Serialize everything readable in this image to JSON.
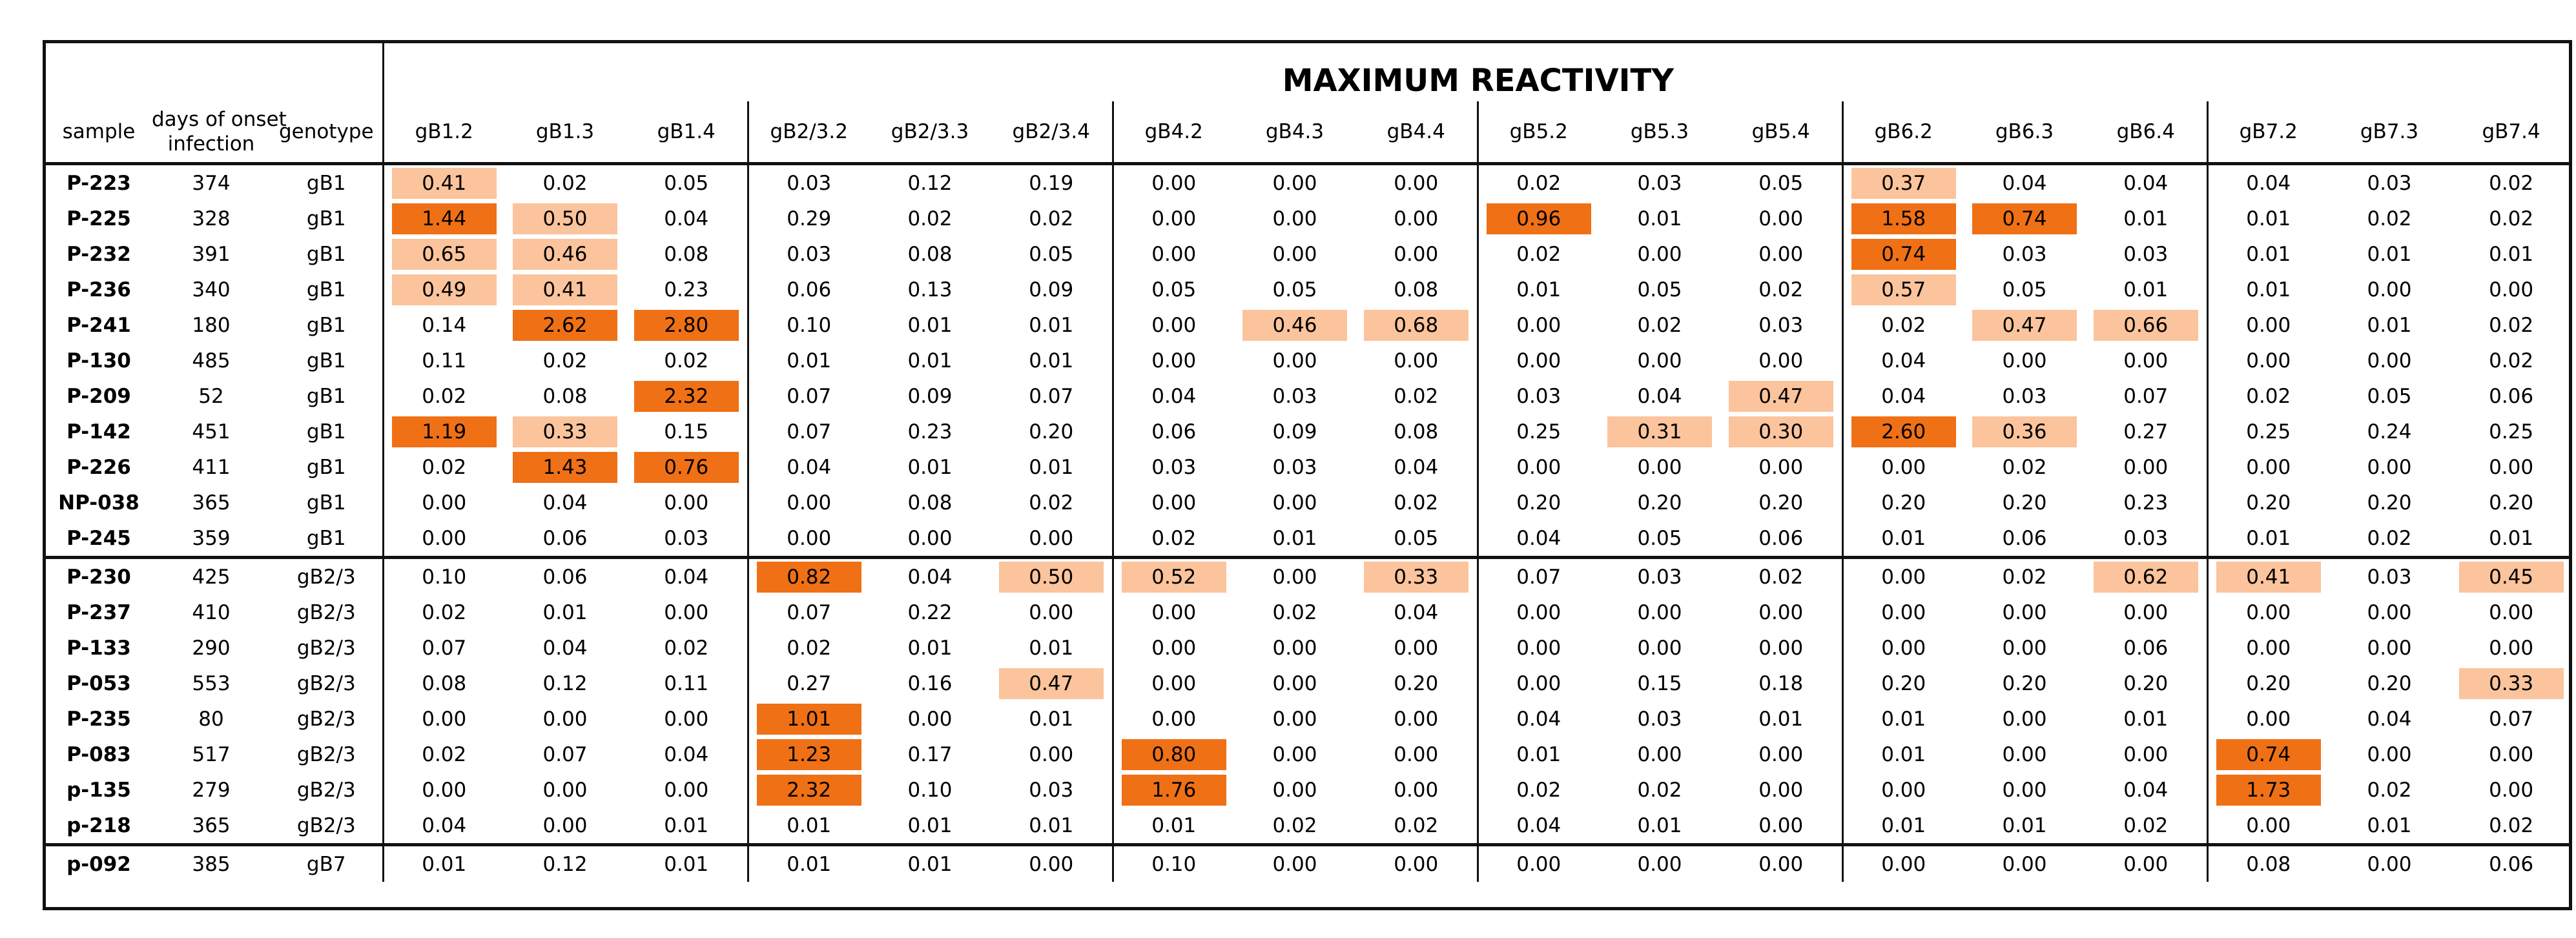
{
  "table": {
    "title": "MAXIMUM REACTIVITY",
    "header": {
      "sample": "sample",
      "days_line1": "days of onset",
      "days_line2": "infection",
      "genotype": "genotype"
    },
    "columns": [
      "gB1.2",
      "gB1.3",
      "gB1.4",
      "gB2/3.2",
      "gB2/3.3",
      "gB2/3.4",
      "gB4.2",
      "gB4.3",
      "gB4.4",
      "gB5.2",
      "gB5.3",
      "gB5.4",
      "gB6.2",
      "gB6.3",
      "gB6.4",
      "gB7.2",
      "gB7.3",
      "gB7.4"
    ],
    "highlight_colors": {
      "strong": "#f07016",
      "light": "#fbc49c",
      "none": "transparent"
    },
    "highlight_legend": "0 = none, 1 = light, 2 = strong",
    "rows": [
      {
        "sample": "P-223",
        "days": "374",
        "genotype": "gB1",
        "values": [
          "0.41",
          "0.02",
          "0.05",
          "0.03",
          "0.12",
          "0.19",
          "0.00",
          "0.00",
          "0.00",
          "0.02",
          "0.03",
          "0.05",
          "0.37",
          "0.04",
          "0.04",
          "0.04",
          "0.03",
          "0.02"
        ],
        "hl": [
          1,
          0,
          0,
          0,
          0,
          0,
          0,
          0,
          0,
          0,
          0,
          0,
          1,
          0,
          0,
          0,
          0,
          0
        ]
      },
      {
        "sample": "P-225",
        "days": "328",
        "genotype": "gB1",
        "values": [
          "1.44",
          "0.50",
          "0.04",
          "0.29",
          "0.02",
          "0.02",
          "0.00",
          "0.00",
          "0.00",
          "0.96",
          "0.01",
          "0.00",
          "1.58",
          "0.74",
          "0.01",
          "0.01",
          "0.02",
          "0.02"
        ],
        "hl": [
          2,
          1,
          0,
          0,
          0,
          0,
          0,
          0,
          0,
          2,
          0,
          0,
          2,
          2,
          0,
          0,
          0,
          0
        ]
      },
      {
        "sample": "P-232",
        "days": "391",
        "genotype": "gB1",
        "values": [
          "0.65",
          "0.46",
          "0.08",
          "0.03",
          "0.08",
          "0.05",
          "0.00",
          "0.00",
          "0.00",
          "0.02",
          "0.00",
          "0.00",
          "0.74",
          "0.03",
          "0.03",
          "0.01",
          "0.01",
          "0.01"
        ],
        "hl": [
          1,
          1,
          0,
          0,
          0,
          0,
          0,
          0,
          0,
          0,
          0,
          0,
          2,
          0,
          0,
          0,
          0,
          0
        ]
      },
      {
        "sample": "P-236",
        "days": "340",
        "genotype": "gB1",
        "values": [
          "0.49",
          "0.41",
          "0.23",
          "0.06",
          "0.13",
          "0.09",
          "0.05",
          "0.05",
          "0.08",
          "0.01",
          "0.05",
          "0.02",
          "0.57",
          "0.05",
          "0.01",
          "0.01",
          "0.00",
          "0.00"
        ],
        "hl": [
          1,
          1,
          0,
          0,
          0,
          0,
          0,
          0,
          0,
          0,
          0,
          0,
          1,
          0,
          0,
          0,
          0,
          0
        ]
      },
      {
        "sample": "P-241",
        "days": "180",
        "genotype": "gB1",
        "values": [
          "0.14",
          "2.62",
          "2.80",
          "0.10",
          "0.01",
          "0.01",
          "0.00",
          "0.46",
          "0.68",
          "0.00",
          "0.02",
          "0.03",
          "0.02",
          "0.47",
          "0.66",
          "0.00",
          "0.01",
          "0.02"
        ],
        "hl": [
          0,
          2,
          2,
          0,
          0,
          0,
          0,
          1,
          1,
          0,
          0,
          0,
          0,
          1,
          1,
          0,
          0,
          0
        ]
      },
      {
        "sample": "P-130",
        "days": "485",
        "genotype": "gB1",
        "values": [
          "0.11",
          "0.02",
          "0.02",
          "0.01",
          "0.01",
          "0.01",
          "0.00",
          "0.00",
          "0.00",
          "0.00",
          "0.00",
          "0.00",
          "0.04",
          "0.00",
          "0.00",
          "0.00",
          "0.00",
          "0.02"
        ],
        "hl": [
          0,
          0,
          0,
          0,
          0,
          0,
          0,
          0,
          0,
          0,
          0,
          0,
          0,
          0,
          0,
          0,
          0,
          0
        ]
      },
      {
        "sample": "P-209",
        "days": "52",
        "genotype": "gB1",
        "values": [
          "0.02",
          "0.08",
          "2.32",
          "0.07",
          "0.09",
          "0.07",
          "0.04",
          "0.03",
          "0.02",
          "0.03",
          "0.04",
          "0.47",
          "0.04",
          "0.03",
          "0.07",
          "0.02",
          "0.05",
          "0.06"
        ],
        "hl": [
          0,
          0,
          2,
          0,
          0,
          0,
          0,
          0,
          0,
          0,
          0,
          1,
          0,
          0,
          0,
          0,
          0,
          0
        ]
      },
      {
        "sample": "P-142",
        "days": "451",
        "genotype": "gB1",
        "values": [
          "1.19",
          "0.33",
          "0.15",
          "0.07",
          "0.23",
          "0.20",
          "0.06",
          "0.09",
          "0.08",
          "0.25",
          "0.31",
          "0.30",
          "2.60",
          "0.36",
          "0.27",
          "0.25",
          "0.24",
          "0.25"
        ],
        "hl": [
          2,
          1,
          0,
          0,
          0,
          0,
          0,
          0,
          0,
          0,
          1,
          1,
          2,
          1,
          0,
          0,
          0,
          0
        ]
      },
      {
        "sample": "P-226",
        "days": "411",
        "genotype": "gB1",
        "values": [
          "0.02",
          "1.43",
          "0.76",
          "0.04",
          "0.01",
          "0.01",
          "0.03",
          "0.03",
          "0.04",
          "0.00",
          "0.00",
          "0.00",
          "0.00",
          "0.02",
          "0.00",
          "0.00",
          "0.00",
          "0.00"
        ],
        "hl": [
          0,
          2,
          2,
          0,
          0,
          0,
          0,
          0,
          0,
          0,
          0,
          0,
          0,
          0,
          0,
          0,
          0,
          0
        ]
      },
      {
        "sample": "NP-038",
        "days": "365",
        "genotype": "gB1",
        "values": [
          "0.00",
          "0.04",
          "0.00",
          "0.00",
          "0.08",
          "0.02",
          "0.00",
          "0.00",
          "0.02",
          "0.20",
          "0.20",
          "0.20",
          "0.20",
          "0.20",
          "0.23",
          "0.20",
          "0.20",
          "0.20"
        ],
        "hl": [
          0,
          0,
          0,
          0,
          0,
          0,
          0,
          0,
          0,
          0,
          0,
          0,
          0,
          0,
          0,
          0,
          0,
          0
        ]
      },
      {
        "sample": "P-245",
        "days": "359",
        "genotype": "gB1",
        "values": [
          "0.00",
          "0.06",
          "0.03",
          "0.00",
          "0.00",
          "0.00",
          "0.02",
          "0.01",
          "0.05",
          "0.04",
          "0.05",
          "0.06",
          "0.01",
          "0.06",
          "0.03",
          "0.01",
          "0.02",
          "0.01"
        ],
        "hl": [
          0,
          0,
          0,
          0,
          0,
          0,
          0,
          0,
          0,
          0,
          0,
          0,
          0,
          0,
          0,
          0,
          0,
          0
        ]
      },
      {
        "sample": "P-230",
        "days": "425",
        "genotype": "gB2/3",
        "values": [
          "0.10",
          "0.06",
          "0.04",
          "0.82",
          "0.04",
          "0.50",
          "0.52",
          "0.00",
          "0.33",
          "0.07",
          "0.03",
          "0.02",
          "0.00",
          "0.02",
          "0.62",
          "0.41",
          "0.03",
          "0.45"
        ],
        "hl": [
          0,
          0,
          0,
          2,
          0,
          1,
          1,
          0,
          1,
          0,
          0,
          0,
          0,
          0,
          1,
          1,
          0,
          1
        ]
      },
      {
        "sample": "P-237",
        "days": "410",
        "genotype": "gB2/3",
        "values": [
          "0.02",
          "0.01",
          "0.00",
          "0.07",
          "0.22",
          "0.00",
          "0.00",
          "0.02",
          "0.04",
          "0.00",
          "0.00",
          "0.00",
          "0.00",
          "0.00",
          "0.00",
          "0.00",
          "0.00",
          "0.00"
        ],
        "hl": [
          0,
          0,
          0,
          0,
          0,
          0,
          0,
          0,
          0,
          0,
          0,
          0,
          0,
          0,
          0,
          0,
          0,
          0
        ]
      },
      {
        "sample": "P-133",
        "days": "290",
        "genotype": "gB2/3",
        "values": [
          "0.07",
          "0.04",
          "0.02",
          "0.02",
          "0.01",
          "0.01",
          "0.00",
          "0.00",
          "0.00",
          "0.00",
          "0.00",
          "0.00",
          "0.00",
          "0.00",
          "0.06",
          "0.00",
          "0.00",
          "0.00"
        ],
        "hl": [
          0,
          0,
          0,
          0,
          0,
          0,
          0,
          0,
          0,
          0,
          0,
          0,
          0,
          0,
          0,
          0,
          0,
          0
        ]
      },
      {
        "sample": "P-053",
        "days": "553",
        "genotype": "gB2/3",
        "values": [
          "0.08",
          "0.12",
          "0.11",
          "0.27",
          "0.16",
          "0.47",
          "0.00",
          "0.00",
          "0.20",
          "0.00",
          "0.15",
          "0.18",
          "0.20",
          "0.20",
          "0.20",
          "0.20",
          "0.20",
          "0.33"
        ],
        "hl": [
          0,
          0,
          0,
          0,
          0,
          1,
          0,
          0,
          0,
          0,
          0,
          0,
          0,
          0,
          0,
          0,
          0,
          1
        ]
      },
      {
        "sample": "P-235",
        "days": "80",
        "genotype": "gB2/3",
        "values": [
          "0.00",
          "0.00",
          "0.00",
          "1.01",
          "0.00",
          "0.01",
          "0.00",
          "0.00",
          "0.00",
          "0.04",
          "0.03",
          "0.01",
          "0.01",
          "0.00",
          "0.01",
          "0.00",
          "0.04",
          "0.07"
        ],
        "hl": [
          0,
          0,
          0,
          2,
          0,
          0,
          0,
          0,
          0,
          0,
          0,
          0,
          0,
          0,
          0,
          0,
          0,
          0
        ]
      },
      {
        "sample": "P-083",
        "days": "517",
        "genotype": "gB2/3",
        "values": [
          "0.02",
          "0.07",
          "0.04",
          "1.23",
          "0.17",
          "0.00",
          "0.80",
          "0.00",
          "0.00",
          "0.01",
          "0.00",
          "0.00",
          "0.01",
          "0.00",
          "0.00",
          "0.74",
          "0.00",
          "0.00"
        ],
        "hl": [
          0,
          0,
          0,
          2,
          0,
          0,
          2,
          0,
          0,
          0,
          0,
          0,
          0,
          0,
          0,
          2,
          0,
          0
        ]
      },
      {
        "sample": "p-135",
        "days": "279",
        "genotype": "gB2/3",
        "values": [
          "0.00",
          "0.00",
          "0.00",
          "2.32",
          "0.10",
          "0.03",
          "1.76",
          "0.00",
          "0.00",
          "0.02",
          "0.02",
          "0.00",
          "0.00",
          "0.00",
          "0.04",
          "1.73",
          "0.02",
          "0.00"
        ],
        "hl": [
          0,
          0,
          0,
          2,
          0,
          0,
          2,
          0,
          0,
          0,
          0,
          0,
          0,
          0,
          0,
          2,
          0,
          0
        ]
      },
      {
        "sample": "p-218",
        "days": "365",
        "genotype": "gB2/3",
        "values": [
          "0.04",
          "0.00",
          "0.01",
          "0.01",
          "0.01",
          "0.01",
          "0.01",
          "0.02",
          "0.02",
          "0.04",
          "0.01",
          "0.00",
          "0.01",
          "0.01",
          "0.02",
          "0.00",
          "0.01",
          "0.02"
        ],
        "hl": [
          0,
          0,
          0,
          0,
          0,
          0,
          0,
          0,
          0,
          0,
          0,
          0,
          0,
          0,
          0,
          0,
          0,
          0
        ]
      },
      {
        "sample": "p-092",
        "days": "385",
        "genotype": "gB7",
        "values": [
          "0.01",
          "0.12",
          "0.01",
          "0.01",
          "0.01",
          "0.00",
          "0.10",
          "0.00",
          "0.00",
          "0.00",
          "0.00",
          "0.00",
          "0.00",
          "0.00",
          "0.00",
          "0.08",
          "0.00",
          "0.06"
        ],
        "hl": [
          0,
          0,
          0,
          0,
          0,
          0,
          0,
          0,
          0,
          0,
          0,
          0,
          0,
          0,
          0,
          0,
          0,
          0
        ]
      }
    ]
  }
}
